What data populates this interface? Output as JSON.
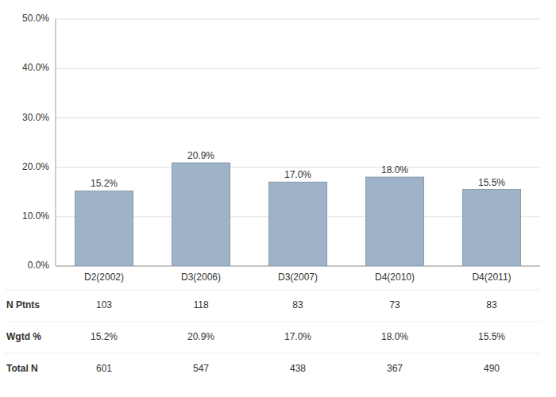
{
  "chart_data": {
    "type": "bar",
    "categories": [
      "D2(2002)",
      "D3(2006)",
      "D3(2007)",
      "D4(2010)",
      "D4(2011)"
    ],
    "values": [
      15.2,
      20.9,
      17.0,
      18.0,
      15.5
    ],
    "value_labels": [
      "15.2%",
      "20.9%",
      "17.0%",
      "18.0%",
      "15.5%"
    ],
    "data_labels": true,
    "color": "#9eb3c7",
    "ylim": [
      0,
      50
    ],
    "yticks": [
      {
        "value": 0,
        "label": "0.0%"
      },
      {
        "value": 10,
        "label": "10.0%"
      },
      {
        "value": 20,
        "label": "20.0%"
      },
      {
        "value": 30,
        "label": "30.0%"
      },
      {
        "value": 40,
        "label": "40.0%"
      },
      {
        "value": 50,
        "label": "50.0%"
      }
    ],
    "grid": true,
    "table": [
      {
        "name": "N Ptnts",
        "values": [
          103,
          118,
          83,
          73,
          83
        ]
      },
      {
        "name": "Wgtd %",
        "values": [
          15.2,
          20.9,
          17.0,
          18.0,
          15.5
        ],
        "value_labels": [
          "15.2%",
          "20.9%",
          "17.0%",
          "18.0%",
          "15.5%"
        ]
      },
      {
        "name": "Total N",
        "values": [
          601,
          547,
          438,
          367,
          490
        ]
      }
    ]
  }
}
